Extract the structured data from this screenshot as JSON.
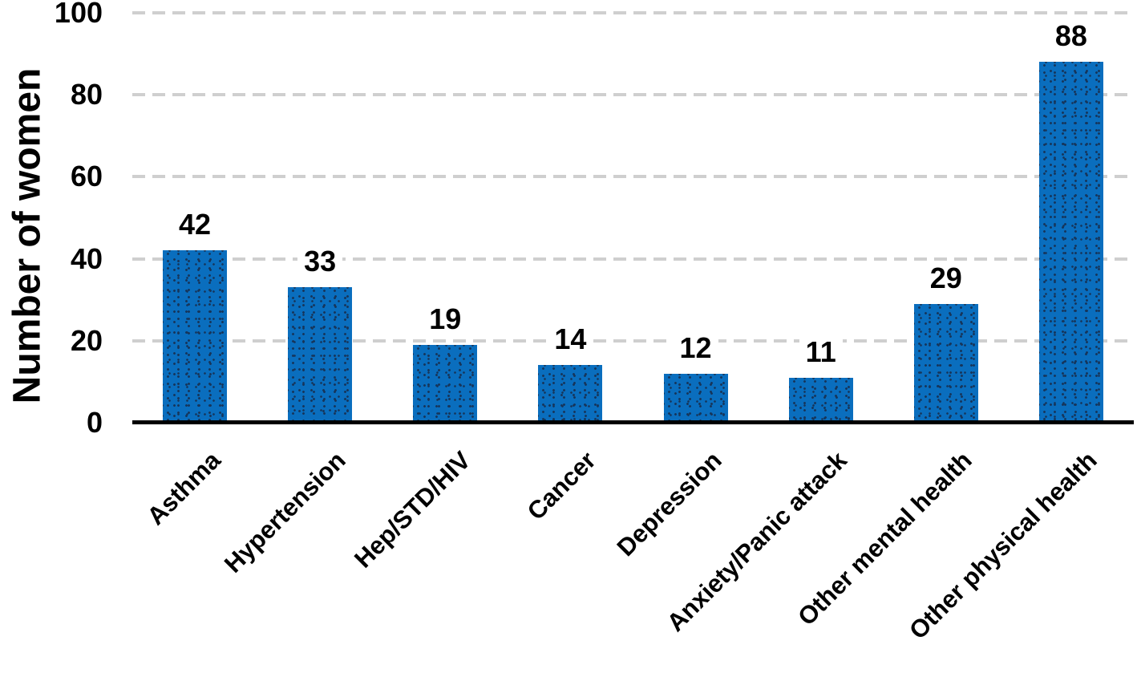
{
  "chart_data": {
    "type": "bar",
    "title": "",
    "xlabel": "",
    "ylabel": "Number of women",
    "categories": [
      "Asthma",
      "Hypertension",
      "Hep/STD/HIV",
      "Cancer",
      "Depression",
      "Anxiety/Panic attack",
      "Other mental health",
      "Other physical health"
    ],
    "values": [
      42,
      33,
      19,
      14,
      12,
      11,
      29,
      88
    ],
    "data_labels": [
      "42",
      "33",
      "19",
      "14",
      "12",
      "11",
      "29",
      "88"
    ],
    "ylim": [
      0,
      100
    ],
    "yticks": [
      0,
      20,
      40,
      60,
      80,
      100
    ],
    "ytick_labels": [
      "0",
      "20",
      "40",
      "60",
      "80",
      "100"
    ],
    "grid": "horizontal-dashed",
    "legend": "none",
    "x_label_rotation_deg": 45,
    "colors": {
      "bar_fill": "#0a6ebe",
      "bar_dot_texture": "#16365c",
      "gridline": "#cfcfcf",
      "axis_line": "#000000",
      "text": "#000000",
      "background": "#ffffff"
    }
  }
}
